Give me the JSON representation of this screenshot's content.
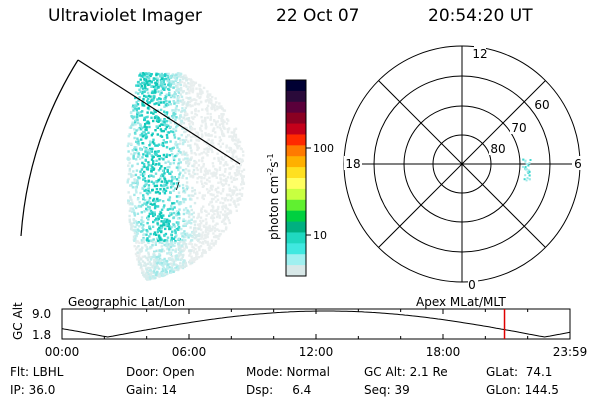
{
  "header": {
    "instrument": "Ultraviolet Imager",
    "date": "22 Oct 07",
    "time": "20:54:20 UT"
  },
  "colorbar": {
    "label": "photon cm-2s-1",
    "tick_labels": [
      "100",
      "10"
    ],
    "colors": [
      "#000033",
      "#2a0a3a",
      "#5a003a",
      "#8a0022",
      "#c4001a",
      "#ff2a00",
      "#ff7a00",
      "#ffb000",
      "#ffe020",
      "#ffff60",
      "#c8ff40",
      "#60f030",
      "#00d040",
      "#00b080",
      "#20d8c0",
      "#40e8e0",
      "#a0f0f0",
      "#d8e8e8"
    ]
  },
  "polar": {
    "mlt_labels": {
      "top": "12",
      "left": "18",
      "right": "6",
      "bottom": "0"
    },
    "lat_labels": [
      "60",
      "70",
      "80"
    ]
  },
  "timeline": {
    "left_title": "Geographic Lat/Lon",
    "right_title": "Apex  MLat/MLT",
    "axis_label": "GC Alt",
    "y_ticks": [
      "9.0",
      "1.8"
    ],
    "x_ticks": [
      "00:00",
      "06:00",
      "12:00",
      "18:00",
      "23:59"
    ],
    "current_time_fraction": 0.8711,
    "marker_color": "#e00000"
  },
  "info": {
    "row1": {
      "flt": "Flt: LBHL",
      "door": "Door: Open",
      "mode": "Mode: Normal",
      "gcalt": "GC Alt: 2.1 Re",
      "glat": "GLat:  74.1"
    },
    "row2": {
      "ip": "IP: 36.0",
      "gain": "Gain: 14",
      "dsp": "Dsp:     6.4",
      "seq": "Seq: 39",
      "glon": "GLon: 144.5"
    }
  }
}
